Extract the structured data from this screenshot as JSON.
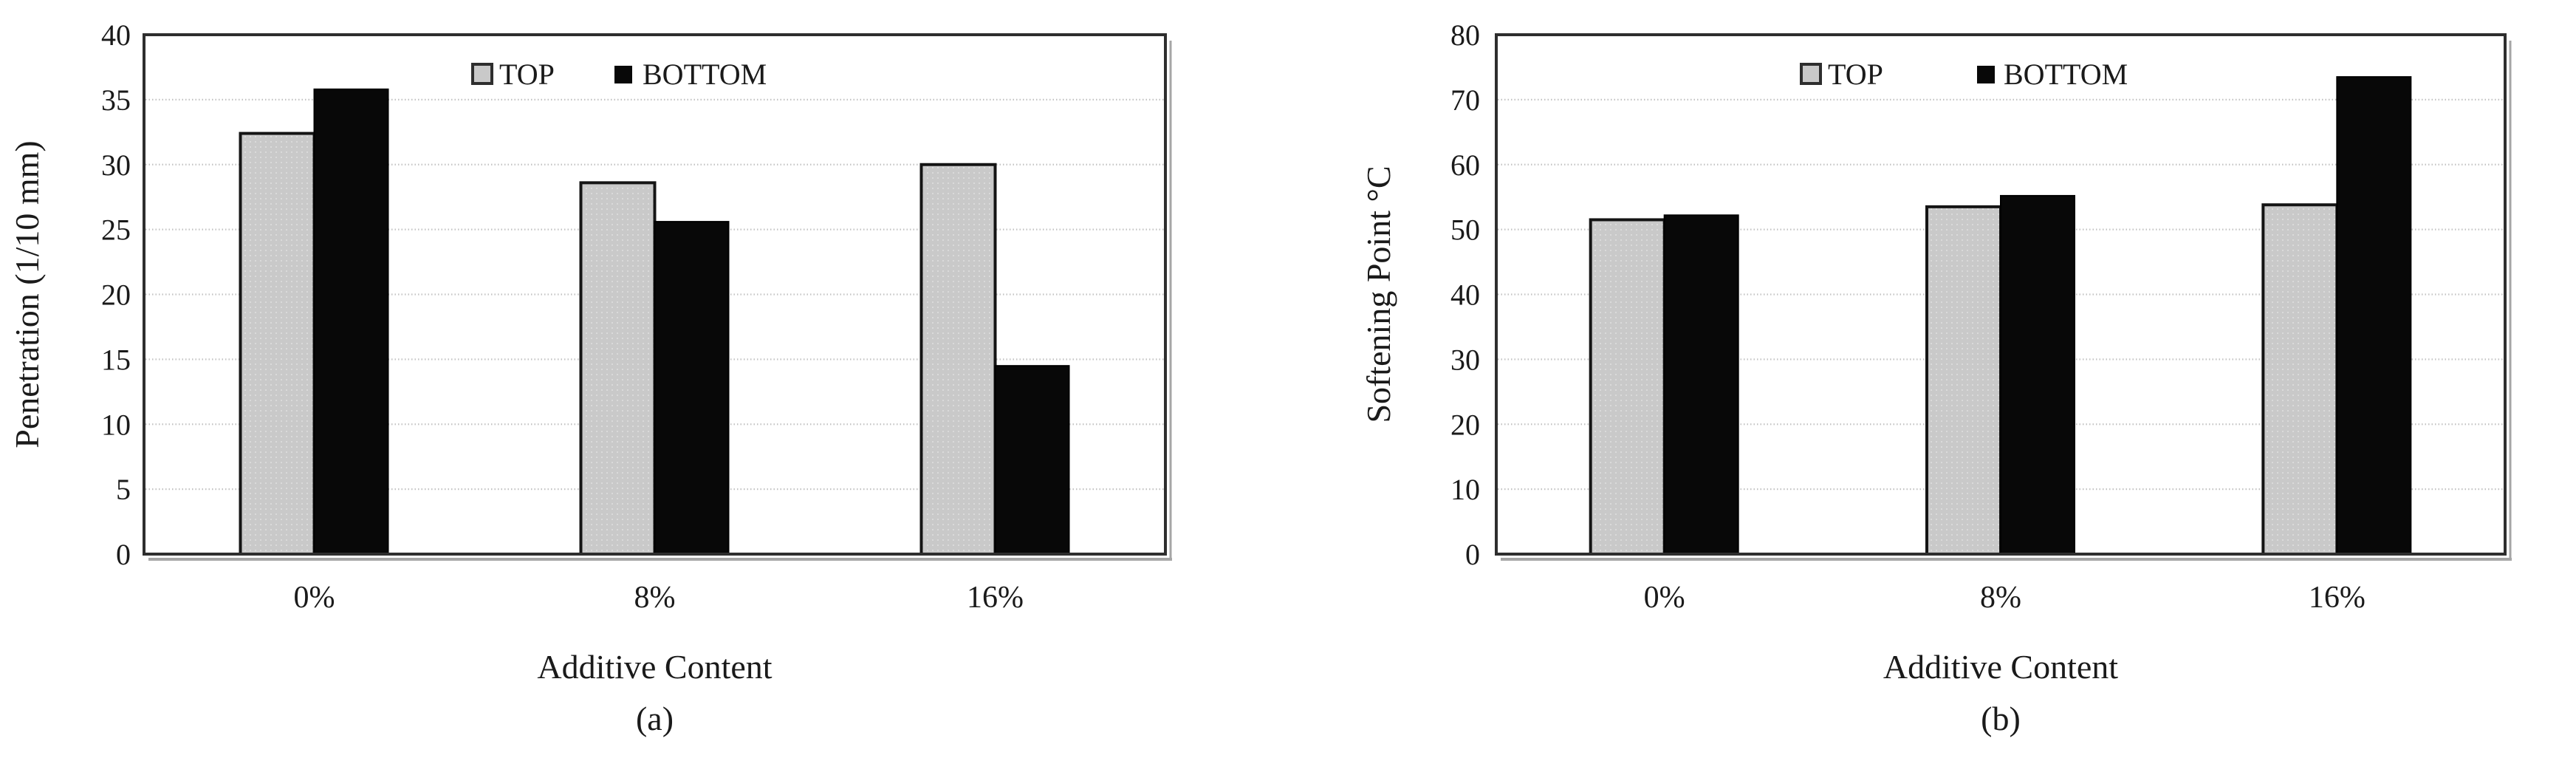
{
  "figure": {
    "background": "#ffffff",
    "colors": {
      "top_series": "#c9c9c9",
      "top_series_dot": "#dadada",
      "bottom_series": "#080808",
      "bar_outline": "#141414",
      "frame": "#2e2e2e",
      "frame_shadow": "#a6a6a6",
      "grid": "#c3c3c3",
      "text": "#1a1a1a"
    }
  },
  "chart_data": [
    {
      "id": "a",
      "type": "bar",
      "title": "",
      "xlabel": "Additive Content",
      "ylabel": "Penetration (1/10 mm)",
      "sublabel": "(a)",
      "categories": [
        "0%",
        "8%",
        "16%"
      ],
      "series": [
        {
          "name": "TOP",
          "role": "top",
          "values": [
            32.4,
            28.6,
            30.0
          ]
        },
        {
          "name": "BOTTOM",
          "role": "bottom",
          "values": [
            35.8,
            25.6,
            14.5
          ]
        }
      ],
      "ylim": [
        0,
        40
      ],
      "ytick_step": 5,
      "ytick_labels": [
        "0",
        "5",
        "10",
        "15",
        "20",
        "25",
        "30",
        "35",
        "40"
      ],
      "grid": true,
      "legend_position": "top-inside"
    },
    {
      "id": "b",
      "type": "bar",
      "title": "",
      "xlabel": "Additive Content",
      "ylabel": "Softening Point °C",
      "sublabel": "(b)",
      "categories": [
        "0%",
        "8%",
        "16%"
      ],
      "series": [
        {
          "name": "TOP",
          "role": "top",
          "values": [
            51.5,
            53.5,
            53.8
          ]
        },
        {
          "name": "BOTTOM",
          "role": "bottom",
          "values": [
            52.2,
            55.2,
            73.5
          ]
        }
      ],
      "ylim": [
        0,
        80
      ],
      "ytick_step": 10,
      "ytick_labels": [
        "0",
        "10",
        "20",
        "30",
        "40",
        "50",
        "60",
        "70",
        "80"
      ],
      "grid": true,
      "legend_position": "top-inside"
    }
  ]
}
